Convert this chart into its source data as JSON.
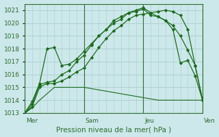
{
  "bg_color": "#cce8ea",
  "grid_color": "#aacccc",
  "line_color": "#1a6b1a",
  "text_color": "#2d6b2d",
  "xlabel": "Pression niveau de la mer( hPa )",
  "ylim": [
    1013.0,
    1021.5
  ],
  "yticks": [
    1013,
    1014,
    1015,
    1016,
    1017,
    1018,
    1019,
    1020,
    1021
  ],
  "xlim": [
    0,
    144
  ],
  "day_positions": [
    0,
    48,
    96,
    144
  ],
  "day_labels": [
    "Mer",
    "Sam",
    "Jeu",
    "Ven"
  ],
  "series1_x": [
    0,
    6,
    12,
    18,
    24,
    30,
    36,
    42,
    48,
    54,
    60,
    66,
    72,
    78,
    84,
    90,
    96,
    102,
    108,
    114,
    120,
    126,
    132,
    138,
    144
  ],
  "series1_y": [
    1013.0,
    1013.4,
    1014.0,
    1014.5,
    1015.0,
    1015.0,
    1015.0,
    1015.0,
    1015.0,
    1014.9,
    1014.8,
    1014.7,
    1014.6,
    1014.5,
    1014.4,
    1014.3,
    1014.2,
    1014.1,
    1014.0,
    1014.0,
    1014.0,
    1014.0,
    1014.0,
    1014.0,
    1014.0
  ],
  "series2_x": [
    0,
    6,
    12,
    18,
    24,
    30,
    36,
    42,
    48,
    54,
    60,
    66,
    72,
    78,
    84,
    90,
    96,
    102,
    108,
    114,
    120,
    126,
    132,
    138,
    144
  ],
  "series2_y": [
    1013.0,
    1013.5,
    1015.0,
    1015.3,
    1015.3,
    1015.5,
    1015.8,
    1016.2,
    1016.5,
    1017.3,
    1018.1,
    1018.8,
    1019.4,
    1019.8,
    1020.3,
    1020.6,
    1020.7,
    1020.8,
    1020.9,
    1021.0,
    1020.9,
    1020.6,
    1019.5,
    1016.7,
    1014.0
  ],
  "series3_x": [
    0,
    6,
    12,
    18,
    24,
    30,
    36,
    42,
    48,
    54,
    60,
    66,
    72,
    78,
    84,
    90,
    96,
    102,
    108,
    114,
    120,
    126,
    132,
    138,
    144
  ],
  "series3_y": [
    1013.0,
    1013.7,
    1015.2,
    1015.4,
    1015.5,
    1016.0,
    1016.3,
    1017.0,
    1017.5,
    1018.3,
    1019.0,
    1019.5,
    1020.2,
    1020.5,
    1020.8,
    1021.0,
    1021.2,
    1020.8,
    1020.5,
    1020.2,
    1019.8,
    1019.0,
    1017.9,
    1016.7,
    1014.0
  ],
  "series4_x": [
    0,
    6,
    12,
    18,
    24,
    30,
    36,
    42,
    48,
    54,
    60,
    66,
    72,
    78,
    84,
    90,
    96,
    102,
    108,
    114,
    120,
    126,
    132,
    138,
    144
  ],
  "series4_y": [
    1013.0,
    1013.9,
    1015.3,
    1018.0,
    1018.1,
    1016.7,
    1016.8,
    1017.2,
    1017.8,
    1018.4,
    1019.0,
    1019.5,
    1020.0,
    1020.3,
    1020.8,
    1020.9,
    1021.1,
    1020.6,
    1020.5,
    1020.2,
    1019.5,
    1016.9,
    1017.1,
    1015.9,
    1014.0
  ],
  "minor_x_step": 6
}
